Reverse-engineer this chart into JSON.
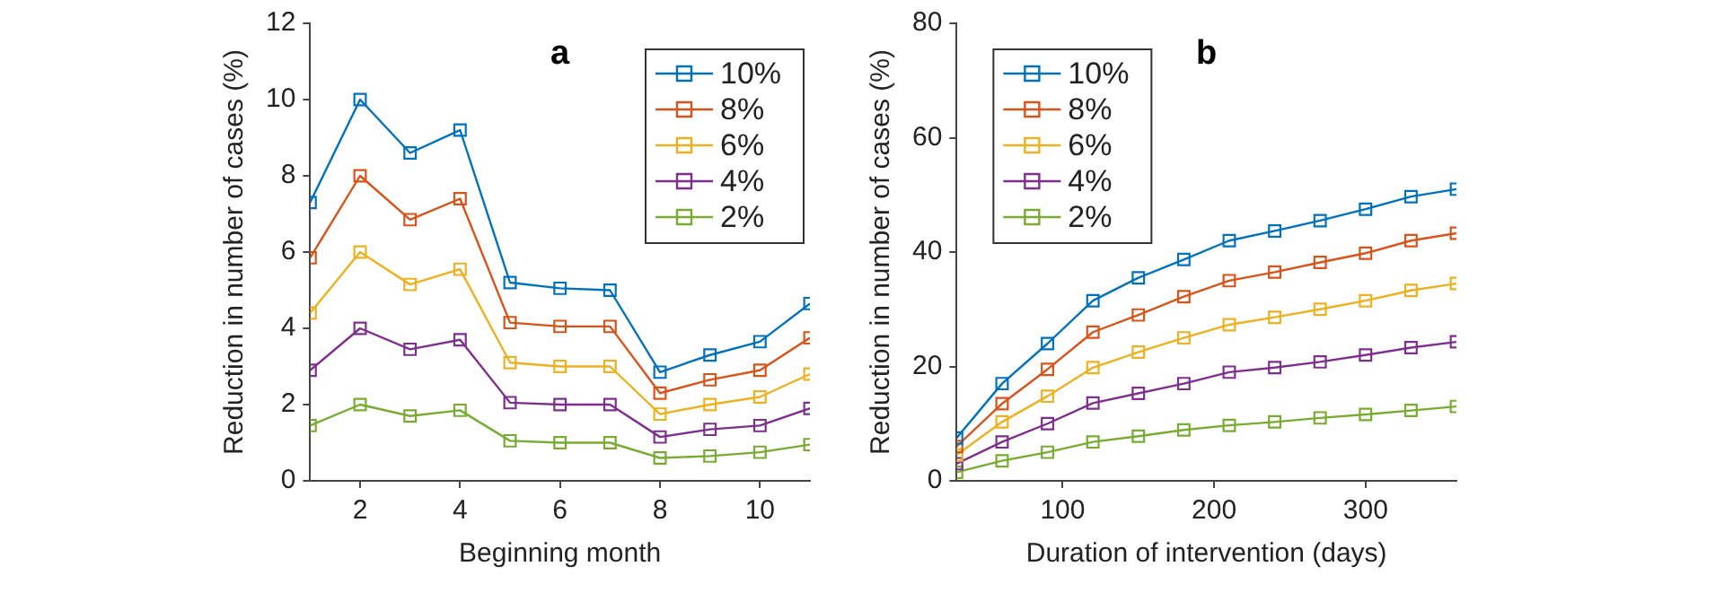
{
  "chart_data": [
    {
      "type": "line",
      "title": "a",
      "xlabel": "Beginning month",
      "ylabel": "Reduction in number of cases (%)",
      "x": [
        1,
        2,
        3,
        4,
        5,
        6,
        7,
        8,
        9,
        10,
        11
      ],
      "xlim": [
        1,
        11
      ],
      "xticks": [
        2,
        4,
        6,
        8,
        10
      ],
      "ylim": [
        0,
        12
      ],
      "yticks": [
        0,
        2,
        4,
        6,
        8,
        10,
        12
      ],
      "legend": "top right",
      "marker": "square",
      "line_style": "solid",
      "grid": false,
      "series": [
        {
          "name": "10%",
          "color": "#0072bd",
          "values": [
            7.3,
            10,
            8.6,
            9.2,
            5.2,
            5.05,
            5.0,
            2.85,
            3.3,
            3.65,
            4.65
          ]
        },
        {
          "name": "8%",
          "color": "#d95319",
          "values": [
            5.85,
            8.0,
            6.85,
            7.4,
            4.15,
            4.05,
            4.05,
            2.3,
            2.65,
            2.9,
            3.75
          ]
        },
        {
          "name": "6%",
          "color": "#edb120",
          "values": [
            4.4,
            6.0,
            5.15,
            5.55,
            3.1,
            3.0,
            3.0,
            1.75,
            2.0,
            2.2,
            2.8
          ]
        },
        {
          "name": "4%",
          "color": "#7e2f8e",
          "values": [
            2.9,
            4.0,
            3.45,
            3.7,
            2.05,
            2.0,
            2.0,
            1.15,
            1.35,
            1.45,
            1.9
          ]
        },
        {
          "name": "2%",
          "color": "#77ac30",
          "values": [
            1.45,
            2.0,
            1.7,
            1.85,
            1.05,
            1.0,
            1.0,
            0.6,
            0.65,
            0.75,
            0.95
          ]
        }
      ]
    },
    {
      "type": "line",
      "title": "b",
      "xlabel": "Duration of intervention (days)",
      "ylabel": "Reduction in number of cases (%)",
      "x": [
        30,
        60,
        90,
        120,
        150,
        180,
        210,
        240,
        270,
        300,
        330,
        360
      ],
      "xlim": [
        30,
        360
      ],
      "xticks": [
        100,
        200,
        300
      ],
      "ylim": [
        0,
        80
      ],
      "yticks": [
        0,
        20,
        40,
        60,
        80
      ],
      "legend": "top left",
      "marker": "square",
      "line_style": "solid",
      "grid": false,
      "series": [
        {
          "name": "10%",
          "color": "#0072bd",
          "values": [
            7.5,
            17,
            24,
            31.5,
            35.5,
            38.7,
            42,
            43.7,
            45.5,
            47.5,
            49.7,
            51
          ]
        },
        {
          "name": "8%",
          "color": "#d95319",
          "values": [
            6,
            13.5,
            19.5,
            26,
            29,
            32.2,
            35,
            36.5,
            38.2,
            39.8,
            42,
            43.3
          ]
        },
        {
          "name": "6%",
          "color": "#edb120",
          "values": [
            4.5,
            10.3,
            14.8,
            19.8,
            22.5,
            25,
            27.3,
            28.6,
            30,
            31.5,
            33.3,
            34.5
          ]
        },
        {
          "name": "4%",
          "color": "#7e2f8e",
          "values": [
            3,
            6.8,
            10,
            13.6,
            15.3,
            17,
            19,
            19.8,
            20.8,
            22,
            23.3,
            24.3
          ]
        },
        {
          "name": "2%",
          "color": "#77ac30",
          "values": [
            1.5,
            3.5,
            5,
            6.8,
            7.8,
            8.9,
            9.7,
            10.3,
            11,
            11.6,
            12.3,
            13
          ]
        }
      ]
    }
  ]
}
